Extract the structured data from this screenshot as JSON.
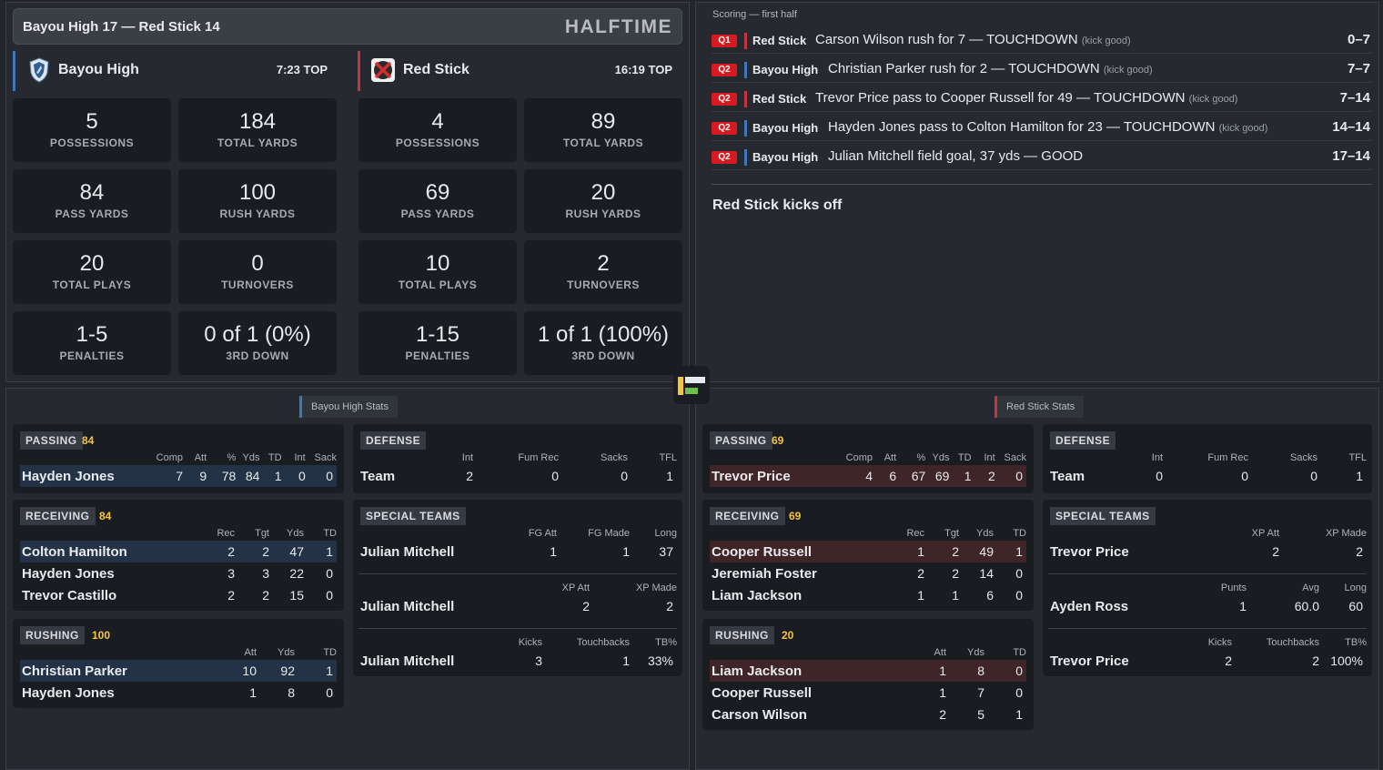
{
  "header": {
    "score_line": "Bayou High 17 — Red Stick 14",
    "status": "HALFTIME"
  },
  "teams": {
    "home": {
      "name": "Bayou High",
      "top": "7:23 TOP",
      "color": "#3e78b8",
      "stats": [
        {
          "v": "5",
          "l": "POSSESSIONS"
        },
        {
          "v": "184",
          "l": "TOTAL YARDS"
        },
        {
          "v": "84",
          "l": "PASS YARDS"
        },
        {
          "v": "100",
          "l": "RUSH YARDS"
        },
        {
          "v": "20",
          "l": "TOTAL PLAYS"
        },
        {
          "v": "0",
          "l": "TURNOVERS"
        },
        {
          "v": "1-5",
          "l": "PENALTIES"
        },
        {
          "v": "0 of 1 (0%)",
          "l": "3RD DOWN"
        }
      ]
    },
    "away": {
      "name": "Red Stick",
      "top": "16:19 TOP",
      "color": "#c8343d",
      "stats": [
        {
          "v": "4",
          "l": "POSSESSIONS"
        },
        {
          "v": "89",
          "l": "TOTAL YARDS"
        },
        {
          "v": "69",
          "l": "PASS YARDS"
        },
        {
          "v": "20",
          "l": "RUSH YARDS"
        },
        {
          "v": "10",
          "l": "TOTAL PLAYS"
        },
        {
          "v": "2",
          "l": "TURNOVERS"
        },
        {
          "v": "1-15",
          "l": "PENALTIES"
        },
        {
          "v": "1 of 1 (100%)",
          "l": "3RD DOWN"
        }
      ]
    }
  },
  "scoring": {
    "title": "Scoring — first half",
    "plays": [
      {
        "q": "Q1",
        "team": "Red Stick",
        "desc": "Carson Wilson rush for 7 — TOUCHDOWN",
        "note": "(kick good)",
        "score": "0–7"
      },
      {
        "q": "Q2",
        "team": "Bayou High",
        "desc": "Christian Parker rush for 2 — TOUCHDOWN",
        "note": "(kick good)",
        "score": "7–7"
      },
      {
        "q": "Q2",
        "team": "Red Stick",
        "desc": "Trevor Price pass to Cooper Russell for 49 — TOUCHDOWN",
        "note": "(kick good)",
        "score": "7–14"
      },
      {
        "q": "Q2",
        "team": "Bayou High",
        "desc": "Hayden Jones pass to Colton Hamilton for 23 — TOUCHDOWN",
        "note": "(kick good)",
        "score": "14–14"
      },
      {
        "q": "Q2",
        "team": "Bayou High",
        "desc": "Julian Mitchell field goal, 37 yds — GOOD",
        "note": "",
        "score": "17–14"
      }
    ],
    "footer": "Red Stick kicks off"
  },
  "home_stats": {
    "tag": "Bayou High Stats",
    "passing": {
      "title": "PASSING",
      "total": "84",
      "cols": [
        "Comp",
        "Att",
        "%",
        "Yds",
        "TD",
        "Int",
        "Sack"
      ],
      "rows": [
        [
          "Hayden Jones",
          "7",
          "9",
          "78",
          "84",
          "1",
          "0",
          "0"
        ]
      ]
    },
    "receiving": {
      "title": "RECEIVING",
      "total": "84",
      "cols": [
        "Rec",
        "Tgt",
        "Yds",
        "TD"
      ],
      "rows": [
        [
          "Colton Hamilton",
          "2",
          "2",
          "47",
          "1"
        ],
        [
          "Hayden Jones",
          "3",
          "3",
          "22",
          "0"
        ],
        [
          "Trevor Castillo",
          "2",
          "2",
          "15",
          "0"
        ]
      ]
    },
    "rushing": {
      "title": "RUSHING",
      "total": "100",
      "cols": [
        "Att",
        "Yds",
        "TD"
      ],
      "rows": [
        [
          "Christian Parker",
          "10",
          "92",
          "1"
        ],
        [
          "Hayden Jones",
          "1",
          "8",
          "0"
        ]
      ]
    },
    "defense": {
      "title": "DEFENSE",
      "cols": [
        "Int",
        "Fum Rec",
        "Sacks",
        "TFL"
      ],
      "rows": [
        [
          "Team",
          "2",
          "0",
          "0",
          "1"
        ]
      ]
    },
    "special": {
      "title": "SPECIAL TEAMS",
      "fg": {
        "cols": [
          "FG Att",
          "FG Made",
          "Long"
        ],
        "rows": [
          [
            "Julian Mitchell",
            "1",
            "1",
            "37"
          ]
        ]
      },
      "xp": {
        "cols": [
          "XP Att",
          "XP Made"
        ],
        "rows": [
          [
            "Julian Mitchell",
            "2",
            "2"
          ]
        ]
      },
      "ko": {
        "cols": [
          "Kicks",
          "Touchbacks",
          "TB%"
        ],
        "rows": [
          [
            "Julian Mitchell",
            "3",
            "1",
            "33%"
          ]
        ]
      }
    }
  },
  "away_stats": {
    "tag": "Red Stick Stats",
    "passing": {
      "title": "PASSING",
      "total": "69",
      "cols": [
        "Comp",
        "Att",
        "%",
        "Yds",
        "TD",
        "Int",
        "Sack"
      ],
      "rows": [
        [
          "Trevor Price",
          "4",
          "6",
          "67",
          "69",
          "1",
          "2",
          "0"
        ]
      ]
    },
    "receiving": {
      "title": "RECEIVING",
      "total": "69",
      "cols": [
        "Rec",
        "Tgt",
        "Yds",
        "TD"
      ],
      "rows": [
        [
          "Cooper Russell",
          "1",
          "2",
          "49",
          "1"
        ],
        [
          "Jeremiah Foster",
          "2",
          "2",
          "14",
          "0"
        ],
        [
          "Liam Jackson",
          "1",
          "1",
          "6",
          "0"
        ]
      ]
    },
    "rushing": {
      "title": "RUSHING",
      "total": "20",
      "cols": [
        "Att",
        "Yds",
        "TD"
      ],
      "rows": [
        [
          "Liam Jackson",
          "1",
          "8",
          "0"
        ],
        [
          "Cooper Russell",
          "1",
          "7",
          "0"
        ],
        [
          "Carson Wilson",
          "2",
          "5",
          "1"
        ]
      ]
    },
    "defense": {
      "title": "DEFENSE",
      "cols": [
        "Int",
        "Fum Rec",
        "Sacks",
        "TFL"
      ],
      "rows": [
        [
          "Team",
          "0",
          "0",
          "0",
          "1"
        ]
      ]
    },
    "special": {
      "title": "SPECIAL TEAMS",
      "xp": {
        "cols": [
          "XP Att",
          "XP Made"
        ],
        "rows": [
          [
            "Trevor Price",
            "2",
            "2"
          ]
        ]
      },
      "punt": {
        "cols": [
          "Punts",
          "Avg",
          "Long"
        ],
        "rows": [
          [
            "Ayden Ross",
            "1",
            "60.0",
            "60"
          ]
        ]
      },
      "ko": {
        "cols": [
          "Kicks",
          "Touchbacks",
          "TB%"
        ],
        "rows": [
          [
            "Trevor Price",
            "2",
            "2",
            "100%"
          ]
        ]
      }
    }
  }
}
